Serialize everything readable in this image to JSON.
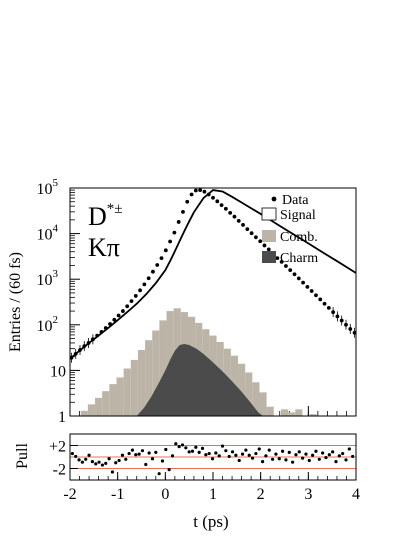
{
  "chart_data": [
    {
      "type": "histogram",
      "panel": "main",
      "ylabel": "Entries / (60 fs)",
      "yscale": "log",
      "ylim": [
        1,
        100000
      ],
      "xlim": [
        -2,
        4
      ],
      "y_ticks": [
        {
          "value": 1,
          "base": "1",
          "exp": ""
        },
        {
          "value": 10,
          "base": "10",
          "exp": ""
        },
        {
          "value": 100,
          "base": "10",
          "exp": "2"
        },
        {
          "value": 1000,
          "base": "10",
          "exp": "3"
        },
        {
          "value": 10000,
          "base": "10",
          "exp": "4"
        },
        {
          "value": 100000,
          "base": "10",
          "exp": "5"
        }
      ],
      "annotation": {
        "line1_base": "D",
        "line1_sup": "*±",
        "line2": "Kπ"
      },
      "legend": {
        "placement": "top-right",
        "items": [
          {
            "key": "data",
            "label": "Data",
            "marker": "dot"
          },
          {
            "key": "signal",
            "label": "Signal",
            "marker": "open-box"
          },
          {
            "key": "comb",
            "label": "Comb.",
            "marker": "filled-box",
            "color": "#bdb4a8"
          },
          {
            "key": "charm",
            "label": "Charm",
            "marker": "filled-box",
            "color": "#4b4b4b"
          }
        ]
      },
      "series": [
        {
          "name": "Data",
          "kind": "points",
          "color": "#000000",
          "x": [
            -1.97,
            -1.88,
            -1.79,
            -1.7,
            -1.61,
            -1.52,
            -1.43,
            -1.34,
            -1.25,
            -1.16,
            -1.07,
            -0.98,
            -0.89,
            -0.8,
            -0.71,
            -0.62,
            -0.53,
            -0.44,
            -0.35,
            -0.26,
            -0.17,
            -0.08,
            0.01,
            0.1,
            0.19,
            0.28,
            0.37,
            0.46,
            0.55,
            0.64,
            0.73,
            0.82,
            0.91,
            1.0,
            1.09,
            1.18,
            1.27,
            1.36,
            1.45,
            1.54,
            1.63,
            1.72,
            1.81,
            1.9,
            1.99,
            2.08,
            2.17,
            2.26,
            2.35,
            2.44,
            2.53,
            2.62,
            2.71,
            2.8,
            2.89,
            2.98,
            3.07,
            3.16,
            3.25,
            3.34,
            3.43,
            3.52,
            3.61,
            3.7,
            3.79,
            3.88,
            3.97
          ],
          "y": [
            19,
            23,
            28,
            34,
            40,
            48,
            58,
            70,
            85,
            104,
            129,
            160,
            200,
            255,
            330,
            430,
            570,
            770,
            1050,
            1460,
            2050,
            2900,
            4300,
            6700,
            10500,
            18000,
            30000,
            50000,
            72000,
            88000,
            90000,
            83000,
            72000,
            61000,
            51000,
            42000,
            35000,
            28500,
            23500,
            19000,
            15500,
            12500,
            10200,
            8300,
            6800,
            5500,
            4500,
            3600,
            2900,
            2400,
            1950,
            1580,
            1280,
            1040,
            840,
            680,
            550,
            445,
            360,
            290,
            235,
            190,
            153,
            124,
            100,
            81,
            67
          ]
        },
        {
          "name": "Signal",
          "kind": "curve",
          "color": "#000000",
          "x": [
            -2.0,
            -1.8,
            -1.6,
            -1.4,
            -1.2,
            -1.0,
            -0.8,
            -0.6,
            -0.4,
            -0.2,
            0.0,
            0.1,
            0.2,
            0.3,
            0.4,
            0.5,
            0.6,
            0.8,
            1.0,
            1.2,
            1.4,
            1.6,
            1.8,
            2.0,
            2.2,
            2.4,
            2.6,
            2.8,
            3.0,
            3.2,
            3.4,
            3.6,
            3.8,
            4.0
          ],
          "y": [
            18,
            27,
            40,
            58,
            85,
            126,
            190,
            290,
            470,
            820,
            1580,
            2500,
            4100,
            6900,
            11400,
            18500,
            29500,
            60000,
            90000,
            84000,
            64000,
            48000,
            36000,
            27000,
            20000,
            14800,
            11000,
            8200,
            6100,
            4500,
            3350,
            2500,
            1850,
            1370
          ]
        },
        {
          "name": "Comb.",
          "kind": "histogram",
          "color": "#bdb4a8",
          "x": [
            -1.7,
            -1.55,
            -1.4,
            -1.25,
            -1.1,
            -0.95,
            -0.8,
            -0.65,
            -0.5,
            -0.35,
            -0.2,
            -0.05,
            0.1,
            0.25,
            0.4,
            0.55,
            0.7,
            0.85,
            1.0,
            1.15,
            1.3,
            1.45,
            1.6,
            1.75,
            1.9,
            2.05,
            2.2,
            2.35,
            2.5,
            2.65,
            2.8,
            2.95,
            3.1
          ],
          "y": [
            1.3,
            1.8,
            2.5,
            3.5,
            5,
            7,
            11,
            17,
            28,
            46,
            75,
            125,
            200,
            230,
            190,
            150,
            110,
            80,
            58,
            42,
            30,
            21,
            14,
            9,
            5.5,
            3.3,
            1.6,
            0,
            1.4,
            1.2,
            1.4,
            0,
            1.1
          ]
        },
        {
          "name": "Charm",
          "kind": "area",
          "color": "#4b4b4b",
          "x": [
            -0.6,
            -0.45,
            -0.3,
            -0.15,
            0.0,
            0.1,
            0.2,
            0.3,
            0.4,
            0.5,
            0.65,
            0.8,
            1.0,
            1.2,
            1.4,
            1.6,
            1.8,
            1.95,
            2.05
          ],
          "y": [
            1,
            1.5,
            2.6,
            5,
            10,
            17,
            27,
            36,
            38,
            36,
            30,
            23,
            15,
            9.5,
            5.8,
            3.4,
            1.9,
            1.2,
            1
          ]
        }
      ]
    },
    {
      "type": "scatter",
      "panel": "pull",
      "ylabel": "Pull",
      "xlabel": "t (ps)",
      "xlim": [
        -2,
        4
      ],
      "ylim": [
        -4,
        4
      ],
      "y_ticks": [
        {
          "value": 2,
          "label": "+2"
        },
        {
          "value": -2,
          "label": "-2"
        }
      ],
      "x_ticks": [
        {
          "value": -2,
          "label": "-2"
        },
        {
          "value": -1,
          "label": "-1"
        },
        {
          "value": 0,
          "label": "0"
        },
        {
          "value": 1,
          "label": "1"
        },
        {
          "value": 2,
          "label": "2"
        },
        {
          "value": 3,
          "label": "3"
        },
        {
          "value": 4,
          "label": "4"
        }
      ],
      "reference_lines": [
        {
          "value": 2,
          "color": "#e87060"
        },
        {
          "value": 0,
          "color": "#e87060"
        },
        {
          "value": -2,
          "color": "#e87060"
        }
      ],
      "x": [
        -1.95,
        -1.88,
        -1.81,
        -1.74,
        -1.67,
        -1.6,
        -1.53,
        -1.46,
        -1.39,
        -1.32,
        -1.25,
        -1.18,
        -1.11,
        -1.04,
        -0.97,
        -0.9,
        -0.83,
        -0.76,
        -0.69,
        -0.62,
        -0.55,
        -0.48,
        -0.41,
        -0.34,
        -0.27,
        -0.2,
        -0.13,
        -0.06,
        0.01,
        0.08,
        0.15,
        0.22,
        0.29,
        0.36,
        0.43,
        0.5,
        0.57,
        0.64,
        0.71,
        0.78,
        0.85,
        0.92,
        0.99,
        1.06,
        1.13,
        1.2,
        1.27,
        1.34,
        1.41,
        1.48,
        1.55,
        1.62,
        1.69,
        1.76,
        1.83,
        1.9,
        1.97,
        2.04,
        2.11,
        2.18,
        2.25,
        2.32,
        2.39,
        2.46,
        2.53,
        2.6,
        2.67,
        2.74,
        2.81,
        2.88,
        2.95,
        3.02,
        3.09,
        3.16,
        3.23,
        3.3,
        3.37,
        3.44,
        3.51,
        3.58,
        3.65,
        3.72,
        3.79,
        3.86,
        3.93
      ],
      "y": [
        0.6,
        0.1,
        -0.5,
        -0.9,
        -0.4,
        0.3,
        -0.8,
        -1.2,
        -0.9,
        -1.4,
        -1.1,
        -0.3,
        -2.6,
        -1.0,
        -0.6,
        0.3,
        -0.4,
        0.6,
        1.2,
        0.4,
        0.5,
        1.1,
        -1.3,
        0.7,
        -0.3,
        0.8,
        -2.9,
        -0.7,
        1.3,
        -2.2,
        0.2,
        2.3,
        1.8,
        2.1,
        1.6,
        0.9,
        1.0,
        1.7,
        0.8,
        1.5,
        0.4,
        0.6,
        -0.3,
        0.7,
        0.2,
        1.9,
        1.1,
        0.1,
        0.9,
        0.3,
        -0.6,
        0.5,
        1.2,
        0.3,
        -0.2,
        0.6,
        1.4,
        -0.8,
        0.2,
        1.2,
        -0.4,
        0.5,
        -0.3,
        1.0,
        -0.5,
        0.8,
        -0.9,
        0.4,
        0.9,
        -0.2,
        0.5,
        -0.6,
        0.3,
        1.0,
        -0.4,
        0.7,
        -0.1,
        0.4,
        0.9,
        -0.8,
        0.2,
        0.6,
        -0.5,
        1.4,
        0.1
      ]
    }
  ]
}
